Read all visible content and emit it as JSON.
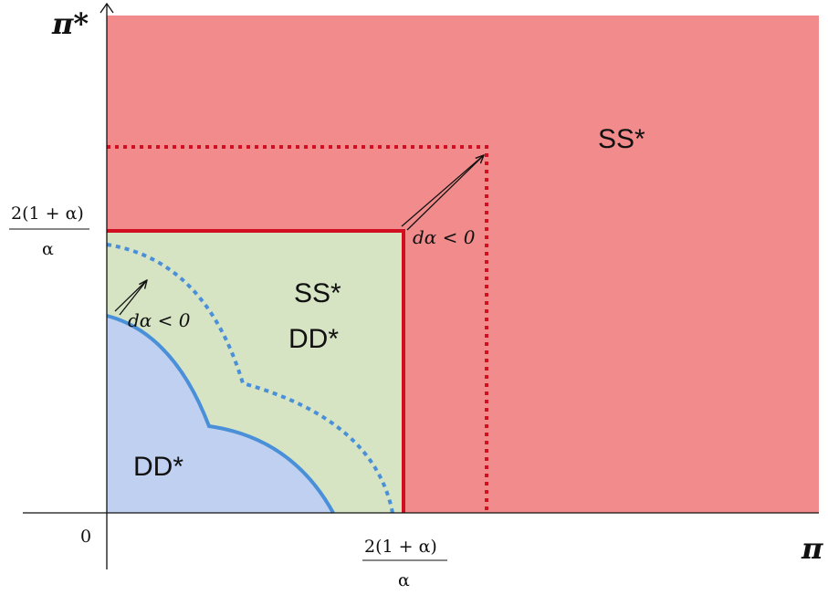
{
  "axes": {
    "x_label": "π",
    "y_label": "π*",
    "origin_label": "0"
  },
  "ticks": {
    "x_numerator": "2(1 + α)",
    "x_denominator": "α",
    "y_numerator": "2(1 + α)",
    "y_denominator": "α"
  },
  "regions": {
    "outer_label": "SS*",
    "middle_label_line1": "SS*",
    "middle_label_line2": "DD*",
    "inner_label": "DD*"
  },
  "annotations": {
    "outer_shift": "dα < 0",
    "inner_shift": "dα < 0"
  },
  "colors": {
    "outer_region": "#f28b8b",
    "middle_region": "#d6e4c4",
    "inner_region": "#c0d0f0",
    "red_boundary": "#d01020",
    "blue_boundary": "#4a90d9"
  }
}
